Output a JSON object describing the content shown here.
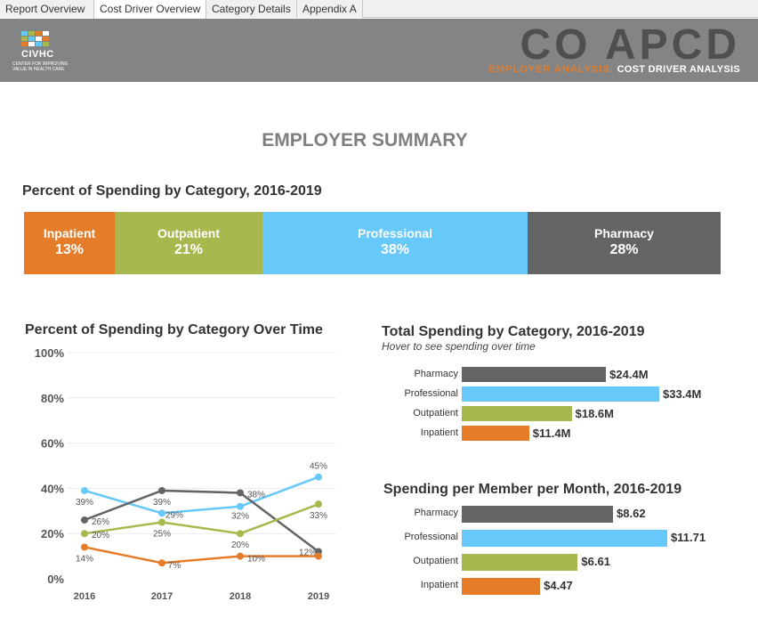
{
  "tabs": [
    {
      "label": "Report Overview"
    },
    {
      "label": "Cost Driver Overview"
    },
    {
      "label": "Category Details"
    },
    {
      "label": "Appendix A"
    }
  ],
  "active_tab": 1,
  "header": {
    "logo_text": "CIVHC",
    "logo_tagline": "CENTER FOR IMPROVING VALUE IN HEALTH CARE",
    "title": "CO APCD",
    "subtitle_a": "EMPLOYER ANALYSIS:",
    "subtitle_b": "COST DRIVER ANALYSIS",
    "bg_color": "#838485"
  },
  "page_title": "EMPLOYER SUMMARY",
  "colors": {
    "inpatient": "#e57c2a",
    "outpatient": "#a8b84f",
    "professional": "#67c8fa",
    "pharmacy": "#636466"
  },
  "percent_section": {
    "title": "Percent of Spending by Category, 2016-2019",
    "segments": [
      {
        "name": "Inpatient",
        "pct_label": "13%",
        "share": 13,
        "color": "#e57c2a"
      },
      {
        "name": "Outpatient",
        "pct_label": "21%",
        "share": 21,
        "color": "#a8b84f"
      },
      {
        "name": "Professional",
        "pct_label": "38%",
        "share": 38,
        "color": "#67c8fa"
      },
      {
        "name": "Pharmacy",
        "pct_label": "28%",
        "share": 28,
        "color": "#636466"
      }
    ]
  },
  "time_chart_title": "Percent of Spending by Category Over Time",
  "total_title": "Total Spending by Category, 2016-2019",
  "total_hint": "Hover to see spending over time",
  "pmpm_title": "Spending per Member per Month, 2016-2019",
  "chart_data": [
    {
      "type": "line",
      "title": "Percent of Spending by Category Over Time",
      "x": [
        "2016",
        "2017",
        "2018",
        "2019"
      ],
      "ylim": [
        0,
        100
      ],
      "yticks": [
        "0%",
        "20%",
        "40%",
        "60%",
        "80%",
        "100%"
      ],
      "yticks_values": [
        0,
        20,
        40,
        60,
        80,
        100
      ],
      "grid": true,
      "series": [
        {
          "name": "Professional",
          "color": "#67c8fa",
          "values": [
            39,
            29,
            32,
            45
          ],
          "labels": [
            "39%",
            "29%",
            "32%",
            "45%"
          ]
        },
        {
          "name": "Pharmacy",
          "color": "#636466",
          "values": [
            26,
            39,
            38,
            12
          ],
          "labels": [
            "26%",
            "39%",
            "38%",
            "12%"
          ]
        },
        {
          "name": "Outpatient",
          "color": "#a8b84f",
          "values": [
            20,
            25,
            20,
            33
          ],
          "labels": [
            "20%",
            "25%",
            "20%",
            "33%"
          ]
        },
        {
          "name": "Inpatient",
          "color": "#e57c2a",
          "values": [
            14,
            7,
            10,
            10
          ],
          "labels": [
            "14%",
            "7%",
            "10%",
            ""
          ]
        }
      ]
    },
    {
      "type": "bar",
      "title": "Total Spending by Category, 2016-2019",
      "orientation": "horizontal",
      "categories": [
        "Pharmacy",
        "Professional",
        "Outpatient",
        "Inpatient"
      ],
      "values": [
        24.4,
        33.4,
        18.6,
        11.4
      ],
      "value_labels": [
        "$24.4M",
        "$33.4M",
        "$18.6M",
        "$11.4M"
      ],
      "colors": [
        "#636466",
        "#67c8fa",
        "#a8b84f",
        "#e57c2a"
      ]
    },
    {
      "type": "bar",
      "title": "Spending per Member per Month, 2016-2019",
      "orientation": "horizontal",
      "categories": [
        "Pharmacy",
        "Professional",
        "Outpatient",
        "Inpatient"
      ],
      "values": [
        8.62,
        11.71,
        6.61,
        4.47
      ],
      "value_labels": [
        "$8.62",
        "$11.71",
        "$6.61",
        "$4.47"
      ],
      "colors": [
        "#636466",
        "#67c8fa",
        "#a8b84f",
        "#e57c2a"
      ]
    }
  ]
}
